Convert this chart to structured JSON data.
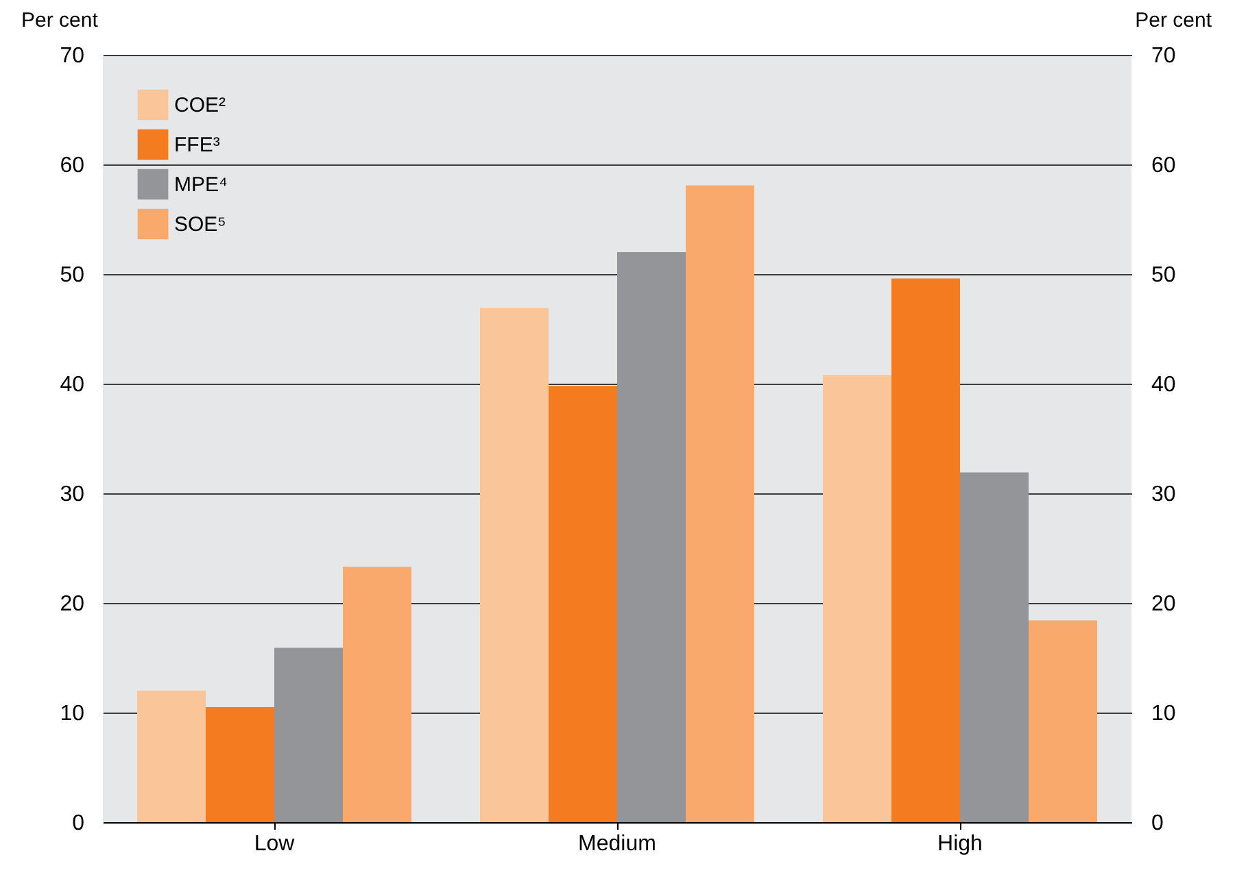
{
  "chart_data": {
    "type": "bar",
    "ylabel": "Per cent",
    "y2label": "Per cent",
    "categories": [
      "Low",
      "Medium",
      "High"
    ],
    "series": [
      {
        "name": "COE²",
        "color": "#fbc59a",
        "values": [
          12.0,
          46.9,
          40.8
        ]
      },
      {
        "name": "FFE³",
        "color": "#f47b20",
        "values": [
          10.5,
          39.8,
          49.6
        ]
      },
      {
        "name": "MPE⁴",
        "color": "#939598",
        "values": [
          15.9,
          52.0,
          31.9
        ]
      },
      {
        "name": "SOE⁵",
        "color": "#f8a96b",
        "values": [
          23.3,
          58.1,
          18.4
        ]
      }
    ],
    "ylim": [
      0,
      70
    ],
    "yticks": [
      0,
      10,
      20,
      30,
      40,
      50,
      60,
      70
    ],
    "y2lim": [
      0,
      70
    ],
    "y2ticks": [
      0,
      10,
      20,
      30,
      40,
      50,
      60,
      70
    ],
    "grid": "y",
    "legend": "top left"
  }
}
